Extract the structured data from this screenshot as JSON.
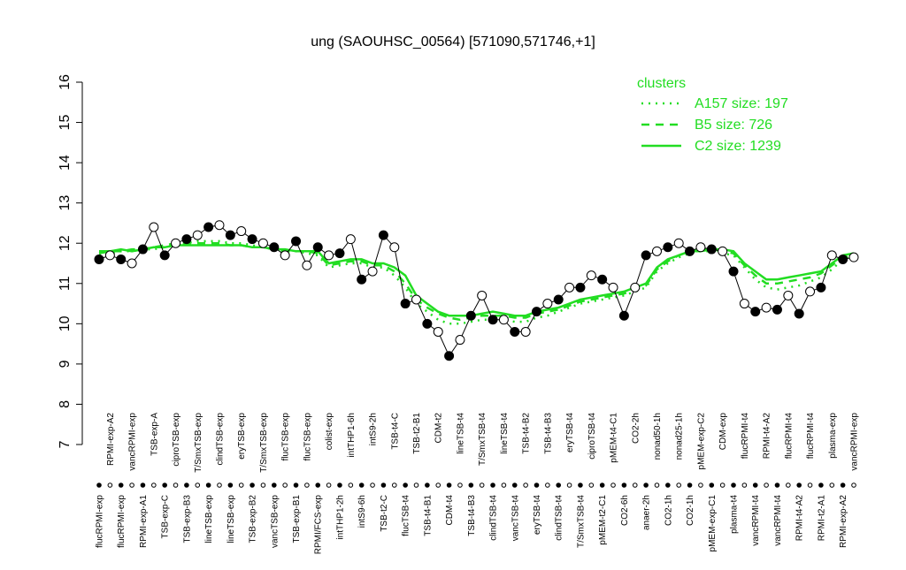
{
  "chart_data": {
    "type": "line",
    "title": "ung (SAOUHSC_00564) [571090,571746,+1]",
    "categories": [
      "flucRPMI-exp",
      "RPMI-exp-A2",
      "flucRPMI-exp",
      "vancRPMI-exp",
      "RPMI-exp-A1",
      "TSB-exp-A",
      "TSB-exp-C",
      "ciproTSB-exp",
      "TSB-exp-B3",
      "T/SmxTSB-exp",
      "lineTSB-exp",
      "clindTSB-exp",
      "lineTSB-exp",
      "eryTSB-exp",
      "TSB-exp-B2",
      "T/SmxTSB-exp",
      "vancTSB-exp",
      "flucTSB-exp",
      "TSB-exp-B1",
      "flucTSB-exp",
      "RPMI/FCS-exp",
      "colist-exp",
      "intTHP1-2h",
      "intTHP1-6h",
      "intS9-6h",
      "intS9-2h",
      "TSB-t2-C",
      "TSB-t4-C",
      "flucTSB-t4",
      "TSB-t2-B1",
      "TSB-t4-B1",
      "CDM-t2",
      "CDM-t4",
      "lineTSB-t4",
      "TSB-t4-B3",
      "T/SmxTSB-t4",
      "clindTSB-t4",
      "lineTSB-t4",
      "vancTSB-t4",
      "TSB-t4-B2",
      "eryTSB-t4",
      "TSB-t4-B3",
      "clindTSB-t4",
      "eryTSB-t4",
      "T/SmxTSB-t4",
      "ciproTSB-t4",
      "pMEM-t2-C1",
      "pMEM-t4-C1",
      "CO2-6h",
      "CO2-2h",
      "anaer-2h",
      "nonad50-1h",
      "CO2-1h",
      "nonad25-1h",
      "CO2-1h",
      "pMEM-exp-C2",
      "pMEM-exp-C1",
      "CDM-exp",
      "plasma-t4",
      "flucRPMI-t4",
      "vancRPMI-t4",
      "RPMI-t4-A2",
      "vancRPMI-t4",
      "flucRPMI-t4",
      "RPMI-t4-A2",
      "flucRPMI-t4",
      "RPMI-t2-A1",
      "plasma-exp",
      "RPMI-exp-A2",
      "vancRPMI-exp"
    ],
    "values": [
      11.6,
      11.7,
      11.6,
      11.5,
      11.85,
      12.4,
      11.7,
      12.0,
      12.1,
      12.2,
      12.4,
      12.45,
      12.2,
      12.3,
      12.1,
      12.0,
      11.9,
      11.7,
      12.05,
      11.45,
      11.9,
      11.7,
      11.75,
      12.1,
      11.1,
      11.3,
      12.2,
      11.9,
      10.5,
      10.6,
      10.0,
      9.8,
      9.2,
      9.6,
      10.2,
      10.7,
      10.1,
      10.1,
      9.8,
      9.8,
      10.3,
      10.5,
      10.6,
      10.9,
      10.9,
      11.2,
      11.1,
      10.9,
      10.2,
      10.9,
      11.7,
      11.8,
      11.9,
      12.0,
      11.8,
      11.9,
      11.85,
      11.8,
      11.3,
      10.5,
      10.3,
      10.4,
      10.35,
      10.7,
      10.25,
      10.8,
      10.9,
      11.7,
      11.6,
      11.65
    ],
    "color": "#000000",
    "ylim": [
      7,
      16
    ],
    "yticks": [
      7,
      8,
      9,
      10,
      11,
      12,
      13,
      14,
      15,
      16
    ],
    "legend": {
      "title": "clusters",
      "position": "top-right"
    },
    "series": [
      {
        "name": "A157 size: 197",
        "style": "dotted",
        "color": "#22dd22",
        "values": [
          11.7,
          11.75,
          11.8,
          11.8,
          11.85,
          11.85,
          11.9,
          11.95,
          12.0,
          12.05,
          12.05,
          12.05,
          12.0,
          12.0,
          11.95,
          11.9,
          11.85,
          11.8,
          11.8,
          11.75,
          11.7,
          11.4,
          11.45,
          11.5,
          11.5,
          11.4,
          11.4,
          11.2,
          10.9,
          10.5,
          10.3,
          10.1,
          10.0,
          10.0,
          10.05,
          10.1,
          10.1,
          10.1,
          10.05,
          10.05,
          10.15,
          10.2,
          10.3,
          10.4,
          10.5,
          10.55,
          10.6,
          10.65,
          10.7,
          10.8,
          10.9,
          11.3,
          11.5,
          11.65,
          11.75,
          11.8,
          11.8,
          11.75,
          11.7,
          11.4,
          11.1,
          10.9,
          10.85,
          10.9,
          10.95,
          11.05,
          11.15,
          11.35,
          11.6,
          11.7
        ]
      },
      {
        "name": "B5 size: 726",
        "style": "dashed",
        "color": "#22dd22",
        "values": [
          11.75,
          11.8,
          11.8,
          11.85,
          11.85,
          11.9,
          11.95,
          12.0,
          12.0,
          12.0,
          12.0,
          12.0,
          11.95,
          11.95,
          11.9,
          11.9,
          11.85,
          11.8,
          11.8,
          11.8,
          11.75,
          11.45,
          11.5,
          11.55,
          11.55,
          11.45,
          11.45,
          11.3,
          11.0,
          10.6,
          10.4,
          10.25,
          10.15,
          10.1,
          10.15,
          10.2,
          10.2,
          10.2,
          10.15,
          10.15,
          10.25,
          10.3,
          10.35,
          10.45,
          10.55,
          10.6,
          10.65,
          10.7,
          10.75,
          10.85,
          10.95,
          11.35,
          11.55,
          11.7,
          11.8,
          11.85,
          11.85,
          11.8,
          11.75,
          11.45,
          11.2,
          11.0,
          11.0,
          11.05,
          11.1,
          11.15,
          11.25,
          11.45,
          11.65,
          11.75
        ]
      },
      {
        "name": "C2 size: 1239",
        "style": "solid",
        "color": "#22dd22",
        "values": [
          11.8,
          11.8,
          11.85,
          11.8,
          11.85,
          11.9,
          11.9,
          11.95,
          11.95,
          11.95,
          11.95,
          11.95,
          11.95,
          11.95,
          11.9,
          11.9,
          11.85,
          11.85,
          11.8,
          11.8,
          11.8,
          11.5,
          11.55,
          11.6,
          11.6,
          11.5,
          11.5,
          11.4,
          11.2,
          10.7,
          10.5,
          10.3,
          10.2,
          10.2,
          10.2,
          10.25,
          10.3,
          10.25,
          10.2,
          10.2,
          10.3,
          10.35,
          10.4,
          10.5,
          10.6,
          10.65,
          10.7,
          10.75,
          10.8,
          10.9,
          11.0,
          11.4,
          11.6,
          11.7,
          11.8,
          11.8,
          11.85,
          11.85,
          11.8,
          11.5,
          11.3,
          11.1,
          11.1,
          11.15,
          11.2,
          11.25,
          11.3,
          11.5,
          11.7,
          11.75
        ]
      }
    ]
  }
}
